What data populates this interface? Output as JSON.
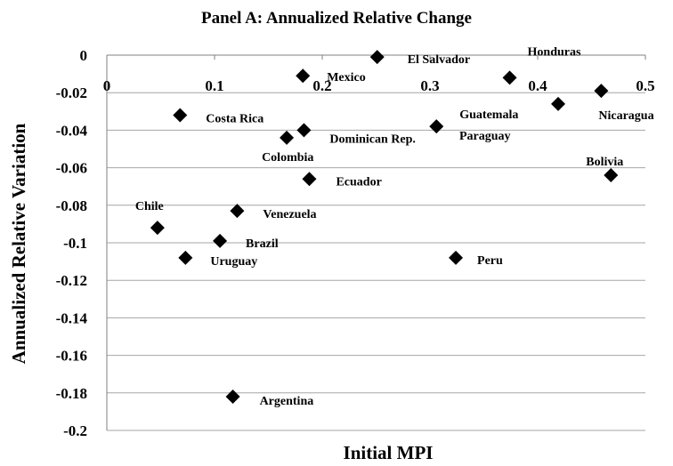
{
  "chart_data": {
    "type": "scatter",
    "title": "Panel A: Annualized Relative Change",
    "x_label": "Initial MPI",
    "y_label": "Annualized Relative Variation",
    "xlim": [
      0,
      0.5
    ],
    "xticks": [
      0,
      0.1,
      0.2,
      0.3,
      0.4,
      0.5
    ],
    "ylim": [
      -0.2,
      0
    ],
    "yticks": [
      0,
      -0.02,
      -0.04,
      -0.06,
      -0.08,
      -0.1,
      -0.12,
      -0.14,
      -0.16,
      -0.18,
      -0.2
    ],
    "grid": true,
    "color": "#000000",
    "points": [
      {
        "label": "El Salvador",
        "x": 0.251,
        "y": -0.001
      },
      {
        "label": "Mexico",
        "x": 0.182,
        "y": -0.011
      },
      {
        "label": "Honduras",
        "x": 0.374,
        "y": -0.012
      },
      {
        "label": "Nicaragua",
        "x": 0.459,
        "y": -0.019
      },
      {
        "label": "Paraguay",
        "x": 0.419,
        "y": -0.026
      },
      {
        "label": "Guatemala",
        "x": 0.306,
        "y": -0.038
      },
      {
        "label": "Costa Rica",
        "x": 0.068,
        "y": -0.032
      },
      {
        "label": "Dominican Rep.",
        "x": 0.183,
        "y": -0.04
      },
      {
        "label": "Colombia",
        "x": 0.167,
        "y": -0.044
      },
      {
        "label": "Bolivia",
        "x": 0.468,
        "y": -0.064
      },
      {
        "label": "Ecuador",
        "x": 0.188,
        "y": -0.066
      },
      {
        "label": "Venezuela",
        "x": 0.121,
        "y": -0.083
      },
      {
        "label": "Chile",
        "x": 0.047,
        "y": -0.092
      },
      {
        "label": "Brazil",
        "x": 0.105,
        "y": -0.099
      },
      {
        "label": "Uruguay",
        "x": 0.073,
        "y": -0.108
      },
      {
        "label": "Peru",
        "x": 0.324,
        "y": -0.108
      },
      {
        "label": "Argentina",
        "x": 0.117,
        "y": -0.182
      }
    ]
  }
}
